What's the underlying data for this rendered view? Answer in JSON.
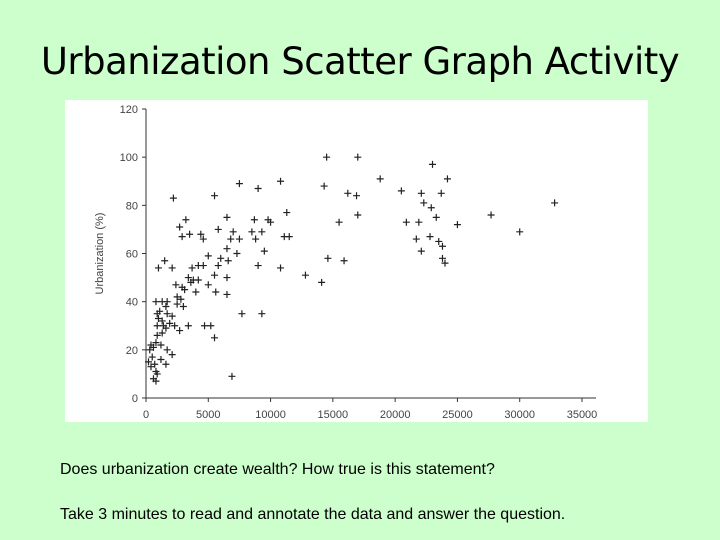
{
  "slide": {
    "title": "Urbanization Scatter Graph Activity",
    "question": "Does urbanization create wealth? How true is this statement?",
    "instruction": "Take 3 minutes to read and annotate the data and answer the question."
  },
  "chart_data": {
    "type": "scatter",
    "title": "",
    "xlabel": "",
    "ylabel": "Urbanization (%)",
    "xlim": [
      0,
      35000
    ],
    "ylim": [
      0,
      120
    ],
    "xticks": [
      0,
      5000,
      10000,
      15000,
      20000,
      25000,
      30000,
      35000
    ],
    "yticks": [
      0,
      20,
      40,
      60,
      80,
      100,
      120
    ],
    "marker": "+",
    "grid": false,
    "series": [
      {
        "points": [
          [
            14500,
            100
          ],
          [
            17000,
            100
          ],
          [
            23000,
            97
          ],
          [
            18800,
            91
          ],
          [
            24200,
            91
          ],
          [
            10800,
            90
          ],
          [
            7500,
            89
          ],
          [
            14300,
            88
          ],
          [
            9000,
            87
          ],
          [
            20500,
            86
          ],
          [
            22100,
            85
          ],
          [
            16200,
            85
          ],
          [
            23700,
            85
          ],
          [
            5500,
            84
          ],
          [
            16900,
            84
          ],
          [
            2200,
            83
          ],
          [
            22300,
            81
          ],
          [
            32800,
            81
          ],
          [
            22900,
            79
          ],
          [
            11300,
            77
          ],
          [
            17000,
            76
          ],
          [
            27700,
            76
          ],
          [
            23300,
            75
          ],
          [
            6500,
            75
          ],
          [
            3200,
            74
          ],
          [
            8700,
            74
          ],
          [
            9800,
            74
          ],
          [
            15500,
            73
          ],
          [
            20900,
            73
          ],
          [
            10000,
            73
          ],
          [
            21900,
            73
          ],
          [
            25000,
            72
          ],
          [
            2700,
            71
          ],
          [
            5800,
            70
          ],
          [
            7000,
            69
          ],
          [
            8500,
            69
          ],
          [
            9300,
            69
          ],
          [
            30000,
            69
          ],
          [
            3500,
            68
          ],
          [
            4400,
            68
          ],
          [
            2900,
            67
          ],
          [
            11100,
            67
          ],
          [
            11500,
            67
          ],
          [
            22800,
            67
          ],
          [
            4600,
            66
          ],
          [
            6800,
            66
          ],
          [
            7500,
            66
          ],
          [
            8800,
            66
          ],
          [
            21700,
            66
          ],
          [
            23500,
            65
          ],
          [
            23800,
            63
          ],
          [
            6500,
            62
          ],
          [
            9500,
            61
          ],
          [
            22100,
            61
          ],
          [
            7300,
            60
          ],
          [
            5000,
            59
          ],
          [
            6000,
            58
          ],
          [
            14600,
            58
          ],
          [
            23800,
            58
          ],
          [
            15900,
            57
          ],
          [
            1500,
            57
          ],
          [
            6600,
            57
          ],
          [
            24000,
            56
          ],
          [
            4200,
            55
          ],
          [
            4600,
            55
          ],
          [
            5800,
            55
          ],
          [
            9000,
            55
          ],
          [
            1000,
            54
          ],
          [
            2100,
            54
          ],
          [
            3700,
            54
          ],
          [
            10800,
            54
          ],
          [
            12800,
            51
          ],
          [
            5500,
            51
          ],
          [
            6500,
            50
          ],
          [
            3400,
            50
          ],
          [
            3800,
            49
          ],
          [
            4200,
            49
          ],
          [
            14100,
            48
          ],
          [
            3600,
            48
          ],
          [
            2400,
            47
          ],
          [
            5000,
            47
          ],
          [
            2900,
            46
          ],
          [
            3100,
            45
          ],
          [
            4000,
            44
          ],
          [
            5600,
            44
          ],
          [
            6500,
            43
          ],
          [
            2500,
            42
          ],
          [
            2800,
            41
          ],
          [
            800,
            40
          ],
          [
            1300,
            40
          ],
          [
            1700,
            40
          ],
          [
            2500,
            39
          ],
          [
            1600,
            38
          ],
          [
            3000,
            38
          ],
          [
            1100,
            36
          ],
          [
            900,
            35
          ],
          [
            1700,
            35
          ],
          [
            7700,
            35
          ],
          [
            9300,
            35
          ],
          [
            2100,
            34
          ],
          [
            1000,
            33
          ],
          [
            1300,
            32
          ],
          [
            1900,
            31
          ],
          [
            900,
            30
          ],
          [
            1400,
            30
          ],
          [
            2300,
            30
          ],
          [
            3400,
            30
          ],
          [
            4700,
            30
          ],
          [
            5200,
            30
          ],
          [
            1600,
            29
          ],
          [
            2700,
            28
          ],
          [
            1300,
            27
          ],
          [
            900,
            26
          ],
          [
            5500,
            25
          ],
          [
            800,
            23
          ],
          [
            400,
            22
          ],
          [
            1200,
            22
          ],
          [
            600,
            21
          ],
          [
            300,
            20
          ],
          [
            1700,
            20
          ],
          [
            2100,
            18
          ],
          [
            500,
            17
          ],
          [
            1200,
            16
          ],
          [
            200,
            15
          ],
          [
            700,
            14
          ],
          [
            1600,
            14
          ],
          [
            400,
            13
          ],
          [
            800,
            11
          ],
          [
            900,
            10
          ],
          [
            6900,
            9
          ],
          [
            600,
            8
          ],
          [
            800,
            7
          ]
        ]
      }
    ]
  }
}
